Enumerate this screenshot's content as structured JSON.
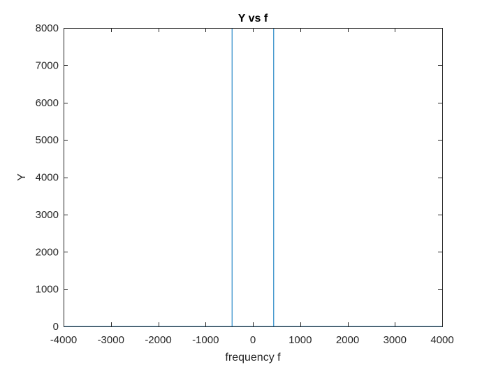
{
  "chart_data": {
    "type": "line",
    "title": "Y vs f",
    "xlabel": "frequency f",
    "ylabel": "Y",
    "xlim": [
      -4000,
      4000
    ],
    "ylim": [
      0,
      8000
    ],
    "xticks": [
      -4000,
      -3000,
      -2000,
      -1000,
      0,
      1000,
      2000,
      3000,
      4000
    ],
    "yticks": [
      0,
      1000,
      2000,
      3000,
      4000,
      5000,
      6000,
      7000,
      8000
    ],
    "grid": false,
    "series": [
      {
        "color": "#0072BD",
        "x": [
          -4000,
          -440,
          -440,
          -440,
          440,
          440,
          440,
          4000
        ],
        "y": [
          0,
          0,
          8000,
          0,
          0,
          8000,
          0,
          0
        ]
      }
    ]
  }
}
